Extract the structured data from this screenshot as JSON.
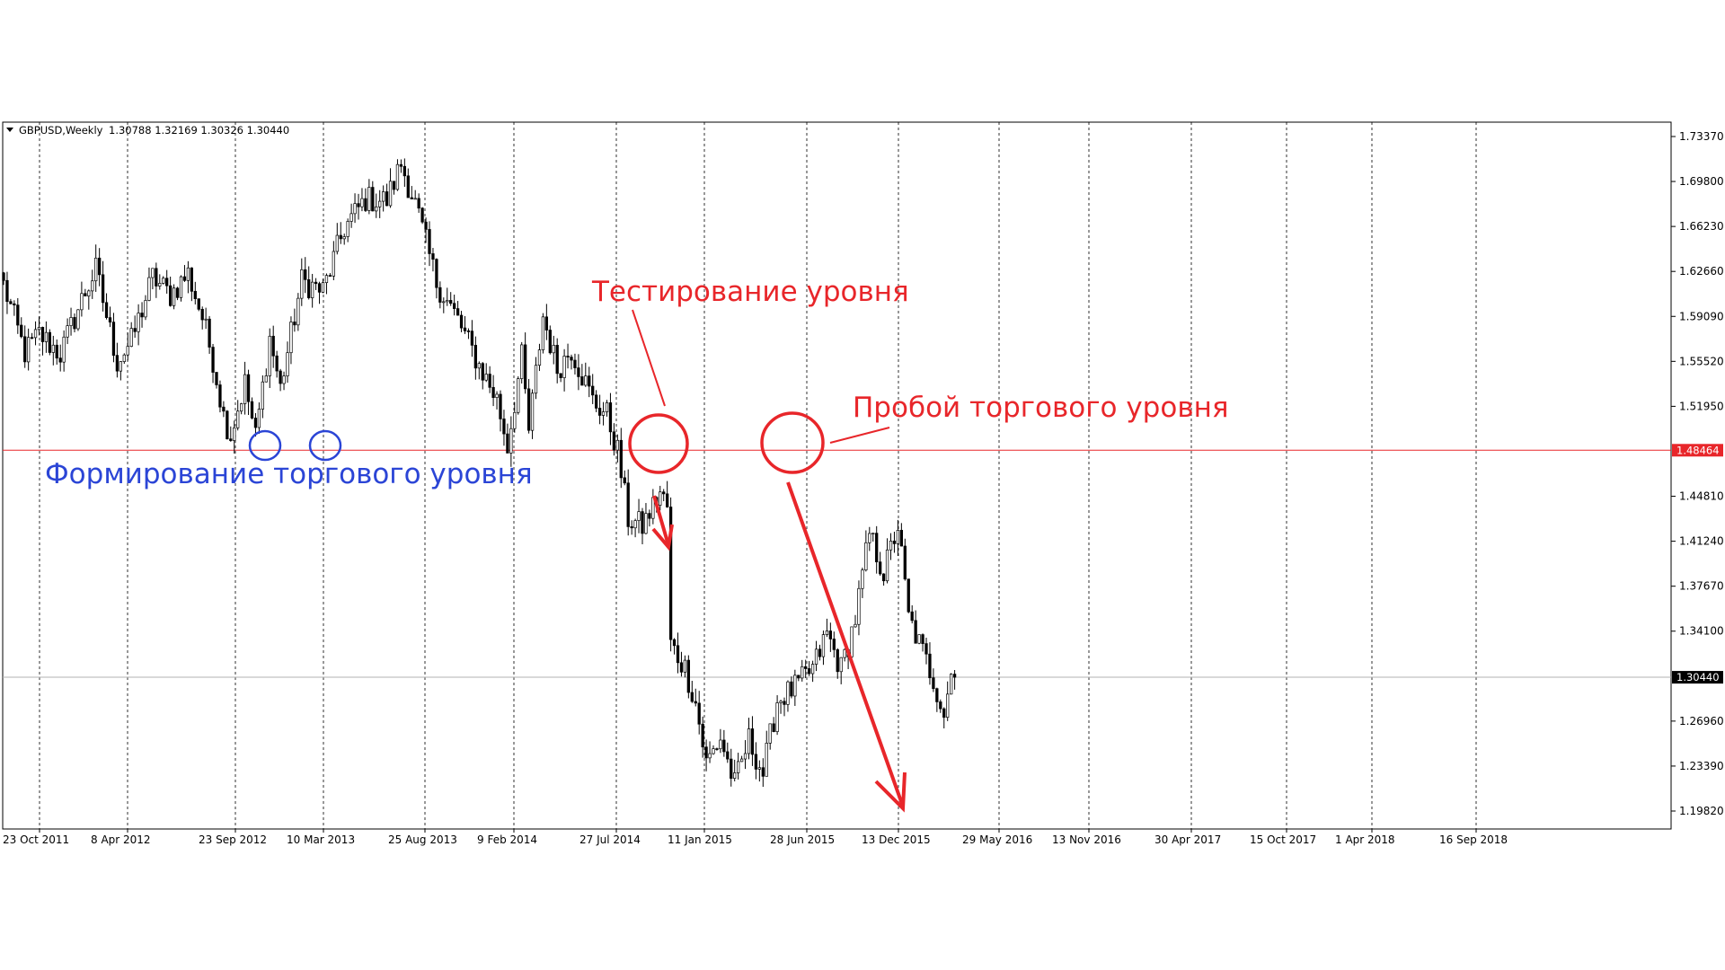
{
  "chart_data": {
    "type": "candlestick",
    "symbol_header": "GBPUSD,Weekly",
    "ohlc_header": "1.30788 1.32169 1.30326 1.30440",
    "x_tick_labels": [
      "23 Oct 2011",
      "8 Apr 2012",
      "23 Sep 2012",
      "10 Mar 2013",
      "25 Aug 2013",
      "9 Feb 2014",
      "27 Jul 2014",
      "11 Jan 2015",
      "28 Jun 2015",
      "13 Dec 2015",
      "29 May 2016",
      "13 Nov 2016",
      "30 Apr 2017",
      "15 Oct 2017",
      "1 Apr 2018",
      "16 Sep 2018"
    ],
    "y_tick_labels": [
      "1.73370",
      "1.69800",
      "1.66230",
      "1.62660",
      "1.59090",
      "1.55520",
      "1.51950",
      "1.44810",
      "1.41240",
      "1.37670",
      "1.34100",
      "1.26960",
      "1.23390",
      "1.19820"
    ],
    "ylim": [
      1.1982,
      1.7337
    ],
    "grid": "vertical dashed at each date label",
    "levels": [
      {
        "name": "support-line",
        "value": 1.48464,
        "label": "1.48464",
        "color": "#e8262a"
      },
      {
        "name": "current-price-line",
        "value": 1.3044,
        "label": "1.30440",
        "color": "#b0b0b0"
      }
    ],
    "price_path": [
      [
        0,
        1.616
      ],
      [
        6,
        1.562
      ],
      [
        10,
        1.577
      ],
      [
        16,
        1.561
      ],
      [
        22,
        1.604
      ],
      [
        26,
        1.628
      ],
      [
        32,
        1.555
      ],
      [
        36,
        1.571
      ],
      [
        42,
        1.622
      ],
      [
        47,
        1.608
      ],
      [
        52,
        1.625
      ],
      [
        56,
        1.59
      ],
      [
        59,
        1.557
      ],
      [
        62,
        1.512
      ],
      [
        64,
        1.497
      ],
      [
        68,
        1.538
      ],
      [
        71,
        1.495
      ],
      [
        75,
        1.574
      ],
      [
        78,
        1.534
      ],
      [
        84,
        1.619
      ],
      [
        90,
        1.611
      ],
      [
        96,
        1.661
      ],
      [
        102,
        1.684
      ],
      [
        108,
        1.683
      ],
      [
        112,
        1.712
      ],
      [
        116,
        1.68
      ],
      [
        122,
        1.618
      ],
      [
        128,
        1.588
      ],
      [
        134,
        1.552
      ],
      [
        139,
        1.525
      ],
      [
        142,
        1.488
      ],
      [
        146,
        1.558
      ],
      [
        148,
        1.5
      ],
      [
        152,
        1.591
      ],
      [
        156,
        1.549
      ],
      [
        160,
        1.565
      ],
      [
        166,
        1.524
      ],
      [
        170,
        1.513
      ],
      [
        173,
        1.484
      ],
      [
        176,
        1.43
      ],
      [
        180,
        1.424
      ],
      [
        185,
        1.451
      ],
      [
        187,
        1.439
      ],
      [
        188,
        1.33
      ],
      [
        192,
        1.312
      ],
      [
        195,
        1.284
      ],
      [
        198,
        1.236
      ],
      [
        202,
        1.256
      ],
      [
        206,
        1.219
      ],
      [
        210,
        1.255
      ],
      [
        214,
        1.228
      ],
      [
        218,
        1.286
      ],
      [
        223,
        1.296
      ],
      [
        228,
        1.311
      ],
      [
        232,
        1.339
      ],
      [
        236,
        1.311
      ],
      [
        240,
        1.351
      ],
      [
        244,
        1.418
      ],
      [
        248,
        1.387
      ],
      [
        252,
        1.425
      ],
      [
        255,
        1.352
      ],
      [
        258,
        1.331
      ],
      [
        262,
        1.303
      ],
      [
        265,
        1.276
      ],
      [
        267,
        1.307
      ],
      [
        268,
        1.3044
      ]
    ],
    "annotations": [
      {
        "text": "Формирование торгового уровня",
        "color": "#2b45d6"
      },
      {
        "text": "Тестирование уровня",
        "color": "#e8262a"
      },
      {
        "text": "Пробой торгового уровня",
        "color": "#e8262a"
      }
    ]
  }
}
